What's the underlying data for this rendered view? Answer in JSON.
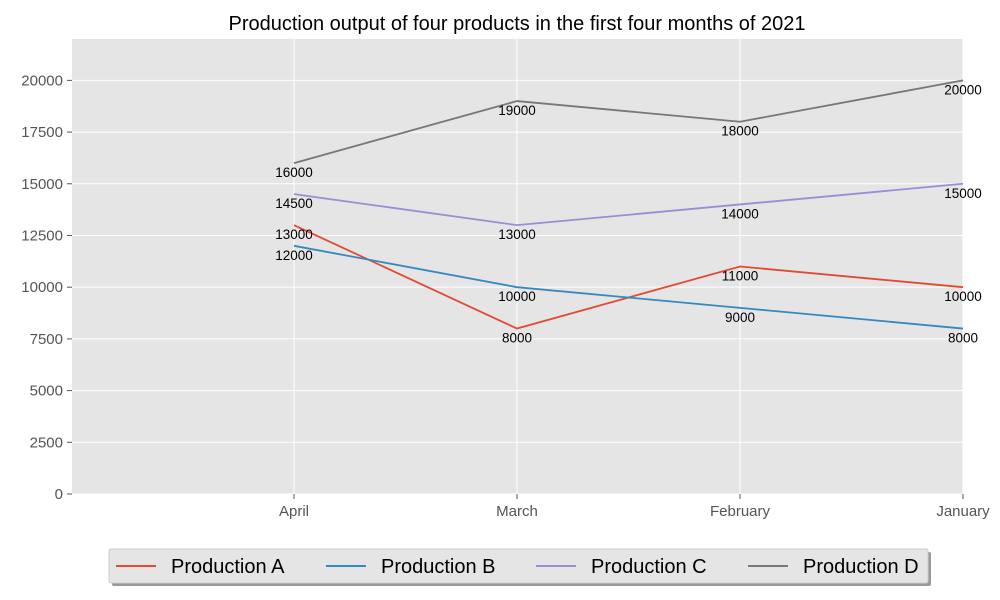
{
  "chart_data": {
    "type": "line",
    "title": "Production output of four products in the first four months of 2021",
    "xlabel": "",
    "ylabel": "",
    "categories": [
      "April",
      "March",
      "February",
      "January"
    ],
    "series": [
      {
        "name": "Production A",
        "color": "#E24A33",
        "values": [
          13000,
          8000,
          11000,
          10000
        ]
      },
      {
        "name": "Production B",
        "color": "#348ABD",
        "values": [
          12000,
          10000,
          9000,
          8000
        ]
      },
      {
        "name": "Production C",
        "color": "#988ED5",
        "values": [
          14500,
          13000,
          14000,
          15000
        ]
      },
      {
        "name": "Production D",
        "color": "#777777",
        "values": [
          16000,
          19000,
          18000,
          20000
        ]
      }
    ],
    "ylim": [
      0,
      22000
    ],
    "yticks": [
      0,
      2500,
      5000,
      7500,
      10000,
      12500,
      15000,
      17500,
      20000
    ],
    "grid": true,
    "legend": "bottom-center",
    "background": "#E5E5E5"
  }
}
